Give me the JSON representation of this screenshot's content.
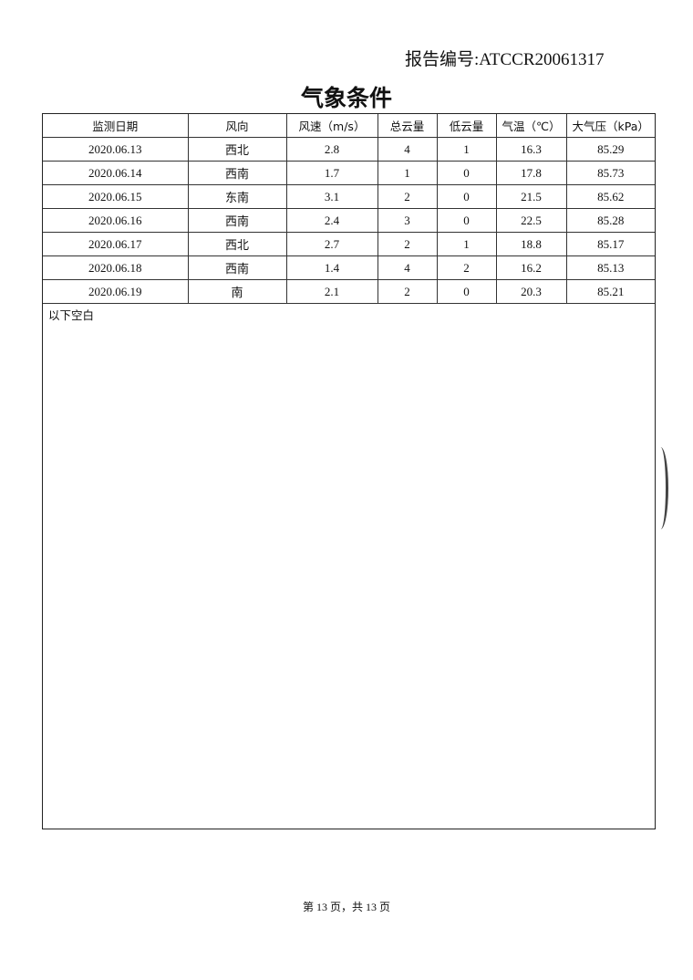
{
  "report_number": "报告编号:ATCCR20061317",
  "title": "气象条件",
  "table": {
    "headers": [
      "监测日期",
      "风向",
      "风速（m/s）",
      "总云量",
      "低云量",
      "气温（℃）",
      "大气压（kPa）"
    ],
    "rows": [
      [
        "2020.06.13",
        "西北",
        "2.8",
        "4",
        "1",
        "16.3",
        "85.29"
      ],
      [
        "2020.06.14",
        "西南",
        "1.7",
        "1",
        "0",
        "17.8",
        "85.73"
      ],
      [
        "2020.06.15",
        "东南",
        "3.1",
        "2",
        "0",
        "21.5",
        "85.62"
      ],
      [
        "2020.06.16",
        "西南",
        "2.4",
        "3",
        "0",
        "22.5",
        "85.28"
      ],
      [
        "2020.06.17",
        "西北",
        "2.7",
        "2",
        "1",
        "18.8",
        "85.17"
      ],
      [
        "2020.06.18",
        "西南",
        "1.4",
        "4",
        "2",
        "16.2",
        "85.13"
      ],
      [
        "2020.06.19",
        "南",
        "2.1",
        "2",
        "0",
        "20.3",
        "85.21"
      ]
    ],
    "note": "以下空白"
  },
  "footer": "第 13 页，共 13 页"
}
